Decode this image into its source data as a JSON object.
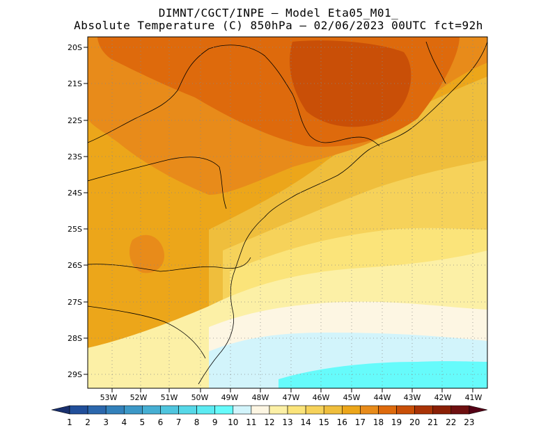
{
  "header": {
    "line1": "DIMNT/CGCT/INPE –  Model Eta05_M01_",
    "line2": "Absolute Temperature (C) 850hPa –  02/06/2023 00UTC fct=92h"
  },
  "axes": {
    "lat_labels": [
      "20S",
      "21S",
      "22S",
      "23S",
      "24S",
      "25S",
      "26S",
      "27S",
      "28S",
      "29S"
    ],
    "lon_labels": [
      "53W",
      "52W",
      "51W",
      "50W",
      "49W",
      "48W",
      "47W",
      "46W",
      "45W",
      "44W",
      "43W",
      "42W",
      "41W"
    ]
  },
  "colorbar": {
    "labels": [
      "1",
      "2",
      "3",
      "4",
      "5",
      "6",
      "7",
      "8",
      "9",
      "10",
      "11",
      "12",
      "13",
      "14",
      "15",
      "16",
      "17",
      "18",
      "19",
      "20",
      "21",
      "22",
      "23"
    ],
    "colors": [
      "#19306e",
      "#214f9a",
      "#2b67ad",
      "#3381bb",
      "#3c98c7",
      "#46afd3",
      "#4fc5de",
      "#56d8e8",
      "#5cebf2",
      "#66fbfb",
      "#d2f4fb",
      "#fdf6e3",
      "#fcf0a6",
      "#fbe47a",
      "#f6d25a",
      "#efbe3c",
      "#eca61a",
      "#e88b1a",
      "#de6a0c",
      "#c94f07",
      "#a93306",
      "#8a1f05",
      "#6e0f10",
      "#540015"
    ]
  }
}
